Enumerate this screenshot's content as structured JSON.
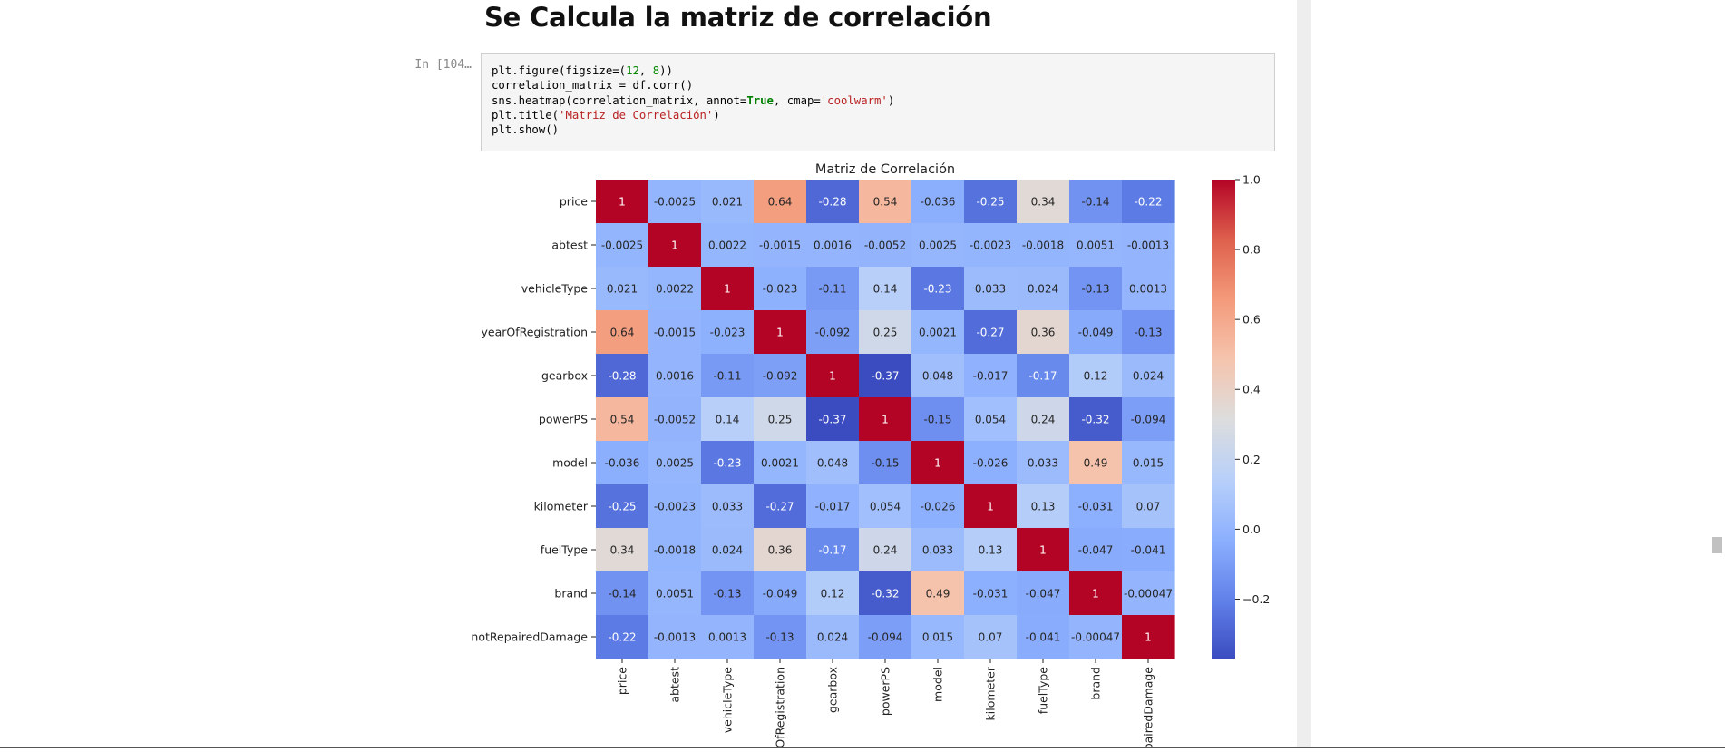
{
  "notebook": {
    "heading": "Se Calcula la matriz de correlación",
    "prompt": "In [104…",
    "code_lines": [
      [
        {
          "t": "plt.figure(figsize=("
        },
        {
          "t": "12",
          "c": "cn"
        },
        {
          "t": ", "
        },
        {
          "t": "8",
          "c": "cn"
        },
        {
          "t": "))"
        }
      ],
      [
        {
          "t": "correlation_matrix = df.corr()"
        }
      ],
      [
        {
          "t": "sns.heatmap(correlation_matrix, annot="
        },
        {
          "t": "True",
          "c": "ck"
        },
        {
          "t": ", cmap="
        },
        {
          "t": "'coolwarm'",
          "c": "cs"
        },
        {
          "t": ")"
        }
      ],
      [
        {
          "t": "plt.title("
        },
        {
          "t": "'Matriz de Correlación'",
          "c": "cs"
        },
        {
          "t": ")"
        }
      ],
      [
        {
          "t": "plt.show()"
        }
      ]
    ]
  },
  "chart_data": {
    "type": "heatmap",
    "title": "Matriz de Correlación",
    "colormap": "coolwarm",
    "labels": [
      "price",
      "abtest",
      "vehicleType",
      "yearOfRegistration",
      "gearbox",
      "powerPS",
      "model",
      "kilometer",
      "fuelType",
      "brand",
      "notRepairedDamage"
    ],
    "display": [
      [
        "1",
        "-0.0025",
        "0.021",
        "0.64",
        "-0.28",
        "0.54",
        "-0.036",
        "-0.25",
        "0.34",
        "-0.14",
        "-0.22"
      ],
      [
        "-0.0025",
        "1",
        "0.0022",
        "-0.0015",
        "0.0016",
        "-0.0052",
        "0.0025",
        "-0.0023",
        "-0.0018",
        "0.0051",
        "-0.0013"
      ],
      [
        "0.021",
        "0.0022",
        "1",
        "-0.023",
        "-0.11",
        "0.14",
        "-0.23",
        "0.033",
        "0.024",
        "-0.13",
        "0.0013"
      ],
      [
        "0.64",
        "-0.0015",
        "-0.023",
        "1",
        "-0.092",
        "0.25",
        "0.0021",
        "-0.27",
        "0.36",
        "-0.049",
        "-0.13"
      ],
      [
        "-0.28",
        "0.0016",
        "-0.11",
        "-0.092",
        "1",
        "-0.37",
        "0.048",
        "-0.017",
        "-0.17",
        "0.12",
        "0.024"
      ],
      [
        "0.54",
        "-0.0052",
        "0.14",
        "0.25",
        "-0.37",
        "1",
        "-0.15",
        "0.054",
        "0.24",
        "-0.32",
        "-0.094"
      ],
      [
        "-0.036",
        "0.0025",
        "-0.23",
        "0.0021",
        "0.048",
        "-0.15",
        "1",
        "-0.026",
        "0.033",
        "0.49",
        "0.015"
      ],
      [
        "-0.25",
        "-0.0023",
        "0.033",
        "-0.27",
        "-0.017",
        "0.054",
        "-0.026",
        "1",
        "0.13",
        "-0.031",
        "0.07"
      ],
      [
        "0.34",
        "-0.0018",
        "0.024",
        "0.36",
        "-0.17",
        "0.24",
        "0.033",
        "0.13",
        "1",
        "-0.047",
        "-0.041"
      ],
      [
        "-0.14",
        "0.0051",
        "-0.13",
        "-0.049",
        "0.12",
        "-0.32",
        "0.49",
        "-0.031",
        "-0.047",
        "1",
        "-0.00047"
      ],
      [
        "-0.22",
        "-0.0013",
        "0.0013",
        "-0.13",
        "0.024",
        "-0.094",
        "0.015",
        "0.07",
        "-0.041",
        "-0.00047",
        "1"
      ]
    ],
    "vmin": -0.37,
    "vmax": 1.0,
    "colorbar_ticks": [
      1.0,
      0.8,
      0.6,
      0.4,
      0.2,
      0.0,
      -0.2
    ],
    "colorbar_tick_labels": [
      "1.0",
      "0.8",
      "0.6",
      "0.4",
      "0.2",
      "0.0",
      "−0.2"
    ]
  }
}
